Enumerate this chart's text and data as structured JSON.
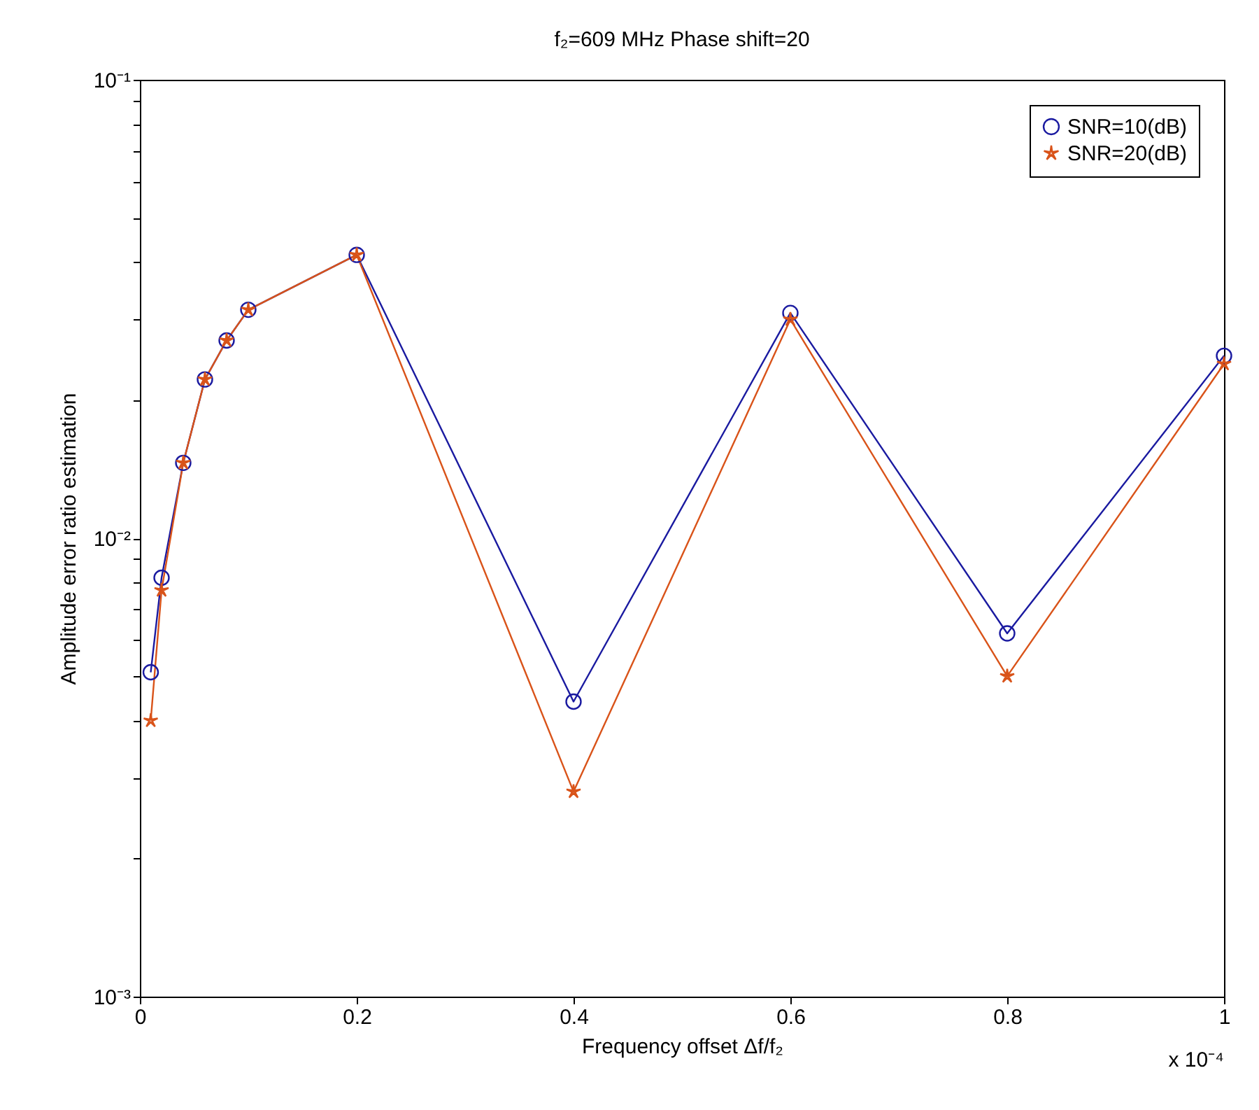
{
  "chart_data": {
    "type": "line",
    "title": "f₂=609 MHz Phase shift=20",
    "xlabel": "Frequency offset Δf/f₂",
    "ylabel": "Amplitude error ratio estimation",
    "annotations": [
      "x 10⁻⁴"
    ],
    "x": [
      0.01,
      0.02,
      0.04,
      0.06,
      0.08,
      0.1,
      0.2,
      0.4,
      0.6,
      0.8,
      1.0
    ],
    "series": [
      {
        "name": "SNR=10(dB)",
        "color": "#1a1aa0",
        "marker": "circle",
        "values": [
          0.0051,
          0.0082,
          0.0146,
          0.0222,
          0.027,
          0.0315,
          0.0415,
          0.0044,
          0.031,
          0.0062,
          0.025
        ]
      },
      {
        "name": "SNR=20(dB)",
        "color": "#d95319",
        "marker": "star",
        "values": [
          0.004,
          0.0077,
          0.0146,
          0.0222,
          0.027,
          0.0315,
          0.0415,
          0.0028,
          0.03,
          0.005,
          0.024
        ]
      }
    ],
    "xlim": [
      0,
      1
    ],
    "xticks": [
      0,
      0.2,
      0.4,
      0.6,
      0.8,
      1
    ],
    "log": "y",
    "ylim": [
      0.001,
      0.1
    ],
    "yticks": [
      {
        "value": 0.001,
        "label": "10⁻³"
      },
      {
        "value": 0.002,
        "label": null
      },
      {
        "value": 0.003,
        "label": null
      },
      {
        "value": 0.004,
        "label": null
      },
      {
        "value": 0.005,
        "label": null
      },
      {
        "value": 0.006,
        "label": null
      },
      {
        "value": 0.007,
        "label": null
      },
      {
        "value": 0.008,
        "label": null
      },
      {
        "value": 0.009,
        "label": null
      },
      {
        "value": 0.01,
        "label": "10⁻²"
      },
      {
        "value": 0.02,
        "label": null
      },
      {
        "value": 0.03,
        "label": null
      },
      {
        "value": 0.04,
        "label": null
      },
      {
        "value": 0.05,
        "label": null
      },
      {
        "value": 0.06,
        "label": null
      },
      {
        "value": 0.07,
        "label": null
      },
      {
        "value": 0.08,
        "label": null
      },
      {
        "value": 0.09,
        "label": null
      },
      {
        "value": 0.1,
        "label": "10⁻¹"
      }
    ],
    "grid": false,
    "legend": "top right",
    "line_style": "solid"
  }
}
